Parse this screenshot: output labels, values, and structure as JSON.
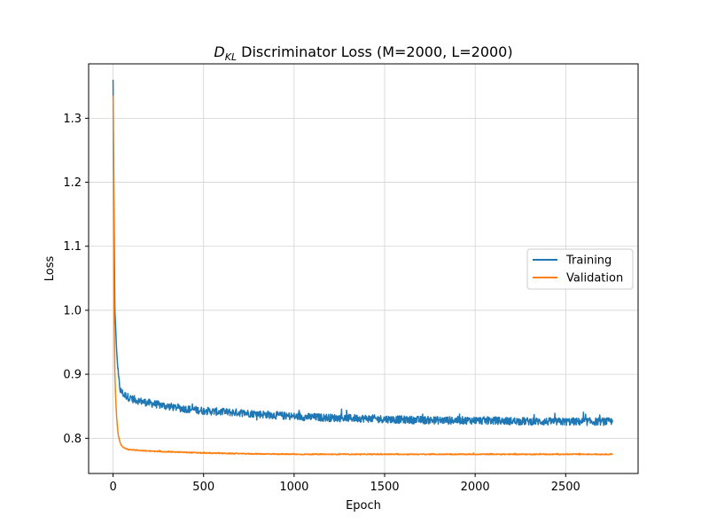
{
  "chart_data": {
    "type": "line",
    "title_symbol": "D",
    "title_subscript": "KL",
    "title_rest": " Discriminator Loss (M=2000, L=2000)",
    "xlabel": "Epoch",
    "ylabel": "Loss",
    "xlim": [
      -135,
      2900
    ],
    "ylim": [
      0.745,
      1.385
    ],
    "xticks": [
      0,
      500,
      1000,
      1500,
      2000,
      2500
    ],
    "yticks": [
      0.8,
      0.9,
      1.0,
      1.1,
      1.2,
      1.3
    ],
    "grid": true,
    "legend_position": "center-right",
    "series": [
      {
        "name": "Training",
        "color": "#1f77b4",
        "x": [
          0,
          5,
          10,
          20,
          30,
          40,
          60,
          80,
          100,
          150,
          200,
          300,
          400,
          500,
          600,
          700,
          800,
          900,
          1000,
          1200,
          1400,
          1600,
          1800,
          2000,
          2200,
          2400,
          2600,
          2760
        ],
        "y": [
          1.36,
          1.15,
          1.0,
          0.935,
          0.895,
          0.875,
          0.868,
          0.865,
          0.862,
          0.858,
          0.855,
          0.85,
          0.846,
          0.843,
          0.841,
          0.84,
          0.838,
          0.836,
          0.834,
          0.832,
          0.831,
          0.829,
          0.828,
          0.828,
          0.827,
          0.826,
          0.826,
          0.826
        ],
        "noise": 0.006
      },
      {
        "name": "Validation",
        "color": "#ff7f0e",
        "x": [
          0,
          3,
          6,
          10,
          15,
          20,
          25,
          30,
          40,
          50,
          60,
          80,
          100,
          150,
          200,
          300,
          400,
          500,
          700,
          1000,
          1500,
          2000,
          2500,
          2760
        ],
        "y": [
          1.335,
          1.15,
          0.99,
          0.9,
          0.858,
          0.832,
          0.815,
          0.803,
          0.792,
          0.787,
          0.785,
          0.783,
          0.782,
          0.781,
          0.78,
          0.779,
          0.778,
          0.777,
          0.776,
          0.775,
          0.775,
          0.775,
          0.775,
          0.775
        ],
        "noise": 0.0008
      }
    ]
  }
}
